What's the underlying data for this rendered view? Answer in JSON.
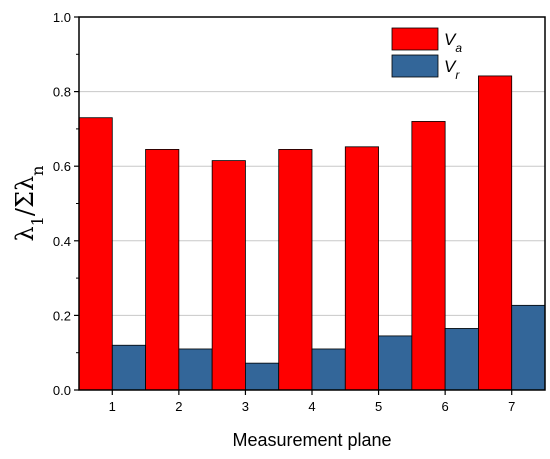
{
  "chart_data": {
    "type": "bar",
    "title": "",
    "xlabel": "Measurement plane",
    "ylabel": "λ1/Σλn",
    "ylabel_parts": {
      "base1": "λ",
      "sub1": "1",
      "mid": "/Σλ",
      "sub2": "n"
    },
    "categories": [
      "1",
      "2",
      "3",
      "4",
      "5",
      "6",
      "7"
    ],
    "ylim": [
      0.0,
      1.0
    ],
    "yticks": [
      "0.0",
      "0.2",
      "0.4",
      "0.6",
      "0.8",
      "1.0"
    ],
    "grid": true,
    "legend_position": "top-right",
    "series": [
      {
        "name": "V",
        "sub": "a",
        "color": "#ff0000",
        "values": [
          0.73,
          0.645,
          0.615,
          0.645,
          0.652,
          0.72,
          0.842
        ]
      },
      {
        "name": "V",
        "sub": "r",
        "color": "#336699",
        "values": [
          0.12,
          0.11,
          0.072,
          0.11,
          0.145,
          0.165,
          0.227
        ]
      }
    ]
  }
}
